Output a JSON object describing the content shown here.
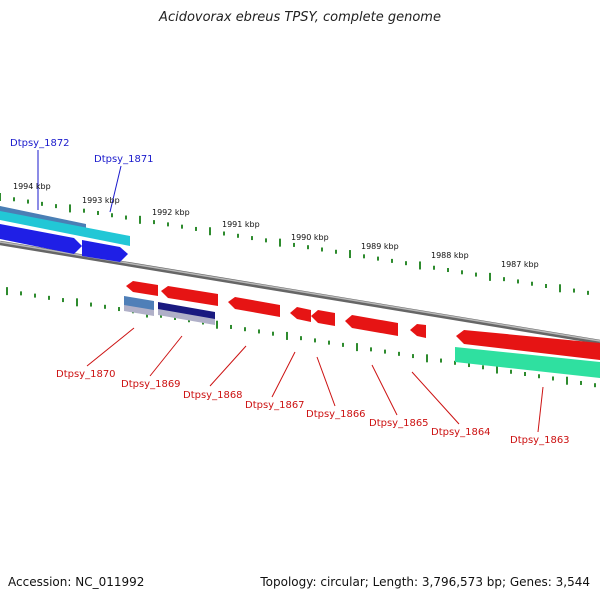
{
  "title": "Acidovorax ebreus TPSY, complete genome",
  "footer": {
    "accession": "Accession: NC_011992",
    "summary": "Topology: circular; Length: 3,796,573 bp; Genes: 3,544"
  },
  "colors": {
    "backbone": "#8a8a8a",
    "tick": "#2e8b2e",
    "forward_label": "#1a1acc",
    "reverse_label": "#cc1111",
    "forward_cds": "#1f1fe6",
    "forward_cds_light": "#22c7d6",
    "forward_cds_steel": "#4a7fb5",
    "reverse_cds": "#e61414",
    "reverse_cds_steel": "#4f7fb8",
    "reverse_cds_navy": "#1a1a80",
    "rna_green": "#2fe0a0"
  },
  "scale_labels": [
    "1994 kbp",
    "1993 kbp",
    "1992 kbp",
    "1991 kbp",
    "1990 kbp",
    "1989 kbp",
    "1988 kbp",
    "1987 kbp"
  ],
  "forward_genes": [
    {
      "label": "Dtpsy_1872"
    },
    {
      "label": "Dtpsy_1871"
    }
  ],
  "reverse_genes": [
    {
      "label": "Dtpsy_1870"
    },
    {
      "label": "Dtpsy_1869"
    },
    {
      "label": "Dtpsy_1868"
    },
    {
      "label": "Dtpsy_1867"
    },
    {
      "label": "Dtpsy_1866"
    },
    {
      "label": "Dtpsy_1865"
    },
    {
      "label": "Dtpsy_1864"
    },
    {
      "label": "Dtpsy_1863"
    }
  ]
}
